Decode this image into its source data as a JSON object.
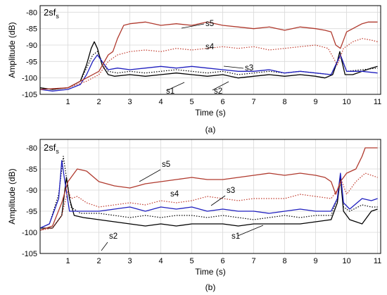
{
  "figure": {
    "panels": [
      {
        "id": "a",
        "caption": "(a)",
        "tag_main": "2sf",
        "tag_sub": "s",
        "xlabel": "Time (s)",
        "ylabel": "Amplitude (dB)",
        "xticks": [
          "1",
          "2",
          "3",
          "4",
          "5",
          "6",
          "7",
          "8",
          "9",
          "10",
          "11"
        ],
        "yticks": [
          "-80",
          "-85",
          "-90",
          "-95",
          "-100",
          "-105"
        ]
      },
      {
        "id": "b",
        "caption": "(b)",
        "tag_main": "2sf",
        "tag_sub": "s",
        "xlabel": "Time (s)",
        "ylabel": "Amplitude (dB)",
        "xticks": [
          "1",
          "2",
          "3",
          "4",
          "5",
          "6",
          "7",
          "8",
          "9",
          "10",
          "11"
        ],
        "yticks": [
          "-80",
          "-85",
          "-90",
          "-95",
          "-100",
          "-105"
        ]
      }
    ]
  },
  "chart_data": [
    {
      "type": "line",
      "panel": "(a)",
      "xlabel": "Time (s)",
      "ylabel": "Amplitude (dB)",
      "xlim": [
        0.1,
        11.1
      ],
      "ylim": [
        -105,
        -78
      ],
      "grid": true,
      "series": [
        {
          "name": "s1",
          "color": "#000000",
          "style": "solid",
          "x": [
            0.1,
            0.5,
            1.0,
            1.4,
            1.6,
            1.75,
            1.85,
            1.95,
            2.1,
            2.3,
            2.5,
            3.0,
            3.5,
            4.0,
            4.5,
            5.0,
            5.5,
            6.0,
            6.5,
            7.0,
            7.5,
            8.0,
            8.5,
            9.0,
            9.3,
            9.55,
            9.7,
            9.78,
            9.85,
            9.95,
            10.2,
            10.5,
            10.8,
            11.0
          ],
          "y": [
            -103,
            -103.5,
            -103,
            -101,
            -96,
            -91,
            -89,
            -91,
            -96,
            -99,
            -99.5,
            -99,
            -99.5,
            -99,
            -98.5,
            -99,
            -99.5,
            -99,
            -100,
            -99.5,
            -99,
            -99.5,
            -99,
            -99.5,
            -100,
            -99,
            -95,
            -92,
            -95,
            -99,
            -99,
            -98,
            -97,
            -96.5
          ]
        },
        {
          "name": "s2",
          "color": "#000000",
          "style": "dotted",
          "x": [
            0.1,
            0.5,
            1.0,
            1.4,
            1.6,
            1.8,
            1.95,
            2.1,
            2.3,
            2.6,
            3.0,
            3.5,
            4.0,
            4.5,
            5.0,
            5.5,
            6.0,
            6.5,
            7.0,
            7.5,
            8.0,
            8.5,
            9.0,
            9.5,
            9.8,
            10.0,
            10.5,
            11.0
          ],
          "y": [
            -103,
            -103.5,
            -103,
            -101,
            -97,
            -93,
            -92,
            -95,
            -98,
            -98.5,
            -98,
            -98.5,
            -98,
            -97.5,
            -98,
            -98.5,
            -98,
            -99,
            -98.5,
            -98,
            -98.5,
            -98,
            -98.5,
            -99,
            -93,
            -98,
            -97.5,
            -97
          ]
        },
        {
          "name": "s3",
          "color": "#1f1fbf",
          "style": "solid",
          "x": [
            0.1,
            0.5,
            1.0,
            1.4,
            1.6,
            1.8,
            1.95,
            2.1,
            2.3,
            2.6,
            3.0,
            3.5,
            4.0,
            4.5,
            5.0,
            5.5,
            6.0,
            6.5,
            7.0,
            7.5,
            8.0,
            8.5,
            9.0,
            9.5,
            9.8,
            10.0,
            10.5,
            11.0
          ],
          "y": [
            -103.5,
            -104,
            -103.5,
            -102,
            -99,
            -95,
            -93,
            -95,
            -97.5,
            -97,
            -97.5,
            -97,
            -96.5,
            -97,
            -96.5,
            -97,
            -97.5,
            -98,
            -98,
            -97.5,
            -98.5,
            -98,
            -98.5,
            -99,
            -93,
            -98,
            -98,
            -98.5
          ]
        },
        {
          "name": "s4",
          "color": "#c0392b",
          "style": "dotted",
          "x": [
            0.1,
            1.0,
            1.6,
            2.0,
            2.3,
            2.6,
            3.0,
            3.5,
            4.0,
            4.5,
            5.0,
            5.5,
            6.0,
            6.5,
            7.0,
            7.5,
            8.0,
            8.5,
            9.0,
            9.4,
            9.7,
            9.9,
            10.2,
            10.5,
            10.8,
            11.0
          ],
          "y": [
            -103.5,
            -103,
            -101,
            -99,
            -95,
            -93,
            -92,
            -91.5,
            -92,
            -91,
            -91.5,
            -91,
            -90.5,
            -91,
            -90.5,
            -91.5,
            -91,
            -90.5,
            -90,
            -91,
            -96,
            -91,
            -89,
            -88,
            -88.5,
            -89
          ]
        },
        {
          "name": "s5",
          "color": "#b03a2e",
          "style": "solid",
          "x": [
            0.1,
            1.0,
            1.6,
            2.0,
            2.3,
            2.45,
            2.6,
            2.8,
            3.0,
            3.5,
            4.0,
            4.5,
            5.0,
            5.5,
            6.0,
            6.5,
            7.0,
            7.5,
            8.0,
            8.5,
            9.0,
            9.3,
            9.5,
            9.65,
            9.8,
            10.0,
            10.3,
            10.5,
            10.7,
            11.0
          ],
          "y": [
            -103.5,
            -103,
            -100,
            -98,
            -93,
            -92,
            -88,
            -84,
            -83.5,
            -83,
            -84,
            -83.5,
            -84,
            -83,
            -84,
            -84.5,
            -85,
            -84.5,
            -85.5,
            -84.5,
            -85,
            -85.5,
            -86,
            -90,
            -91,
            -86,
            -84.5,
            -83.5,
            -83,
            -83
          ]
        }
      ],
      "annotations": [
        "s1",
        "s2",
        "s3",
        "s4",
        "s5"
      ]
    },
    {
      "type": "line",
      "panel": "(b)",
      "xlabel": "Time (s)",
      "ylabel": "Amplitude (dB)",
      "xlim": [
        0.1,
        11.1
      ],
      "ylim": [
        -105,
        -78
      ],
      "grid": true,
      "series": [
        {
          "name": "s1",
          "color": "#000000",
          "style": "solid",
          "x": [
            0.1,
            0.5,
            0.8,
            0.95,
            1.05,
            1.2,
            1.5,
            2.0,
            2.5,
            3.0,
            3.5,
            4.0,
            4.5,
            5.0,
            5.5,
            6.0,
            6.5,
            7.0,
            7.5,
            8.0,
            8.5,
            9.0,
            9.5,
            9.7,
            9.8,
            9.9,
            10.1,
            10.5,
            10.8,
            11.0
          ],
          "y": [
            -99,
            -99,
            -96,
            -87,
            -92,
            -96,
            -96.5,
            -97,
            -97.5,
            -98,
            -98.5,
            -98,
            -98.5,
            -98,
            -98,
            -98,
            -98.5,
            -98,
            -98,
            -98,
            -98,
            -97.5,
            -97,
            -93,
            -87,
            -95,
            -97,
            -98,
            -95,
            -94.5
          ]
        },
        {
          "name": "s2",
          "color": "#000000",
          "style": "dotted",
          "x": [
            0.1,
            0.4,
            0.7,
            0.85,
            0.95,
            1.1,
            1.4,
            2.0,
            2.5,
            3.0,
            3.5,
            4.0,
            4.5,
            5.0,
            5.5,
            6.0,
            6.5,
            7.0,
            7.5,
            8.0,
            8.5,
            9.0,
            9.5,
            9.7,
            9.8,
            9.9,
            10.1,
            10.5,
            10.8,
            11.0
          ],
          "y": [
            -99,
            -98,
            -91,
            -82,
            -87,
            -94,
            -95.5,
            -95.5,
            -96,
            -96.5,
            -96,
            -96.5,
            -96,
            -96,
            -96.5,
            -96,
            -96.5,
            -97,
            -96.5,
            -96,
            -96.5,
            -96,
            -96,
            -92,
            -87,
            -94,
            -95,
            -93.5,
            -94,
            -94
          ]
        },
        {
          "name": "s3",
          "color": "#1f1fbf",
          "style": "solid",
          "x": [
            0.1,
            0.4,
            0.7,
            0.8,
            0.9,
            1.05,
            1.3,
            2.0,
            2.5,
            3.0,
            3.5,
            4.0,
            4.5,
            5.0,
            5.5,
            6.0,
            6.5,
            7.0,
            7.5,
            8.0,
            8.5,
            9.0,
            9.5,
            9.7,
            9.8,
            9.9,
            10.1,
            10.5,
            10.8,
            11.0
          ],
          "y": [
            -99,
            -98,
            -92,
            -83,
            -88,
            -95,
            -95,
            -95,
            -94.5,
            -94,
            -95,
            -94,
            -94.5,
            -94,
            -95,
            -94.5,
            -95,
            -95,
            -95.5,
            -95,
            -94.5,
            -95,
            -95,
            -92,
            -86,
            -93,
            -94.5,
            -92,
            -92.5,
            -92
          ]
        },
        {
          "name": "s4",
          "color": "#c0392b",
          "style": "dotted",
          "x": [
            0.1,
            0.5,
            0.8,
            1.0,
            1.1,
            1.3,
            1.6,
            2.0,
            2.5,
            3.0,
            3.5,
            4.0,
            4.5,
            5.0,
            5.5,
            6.0,
            6.5,
            7.0,
            7.5,
            8.0,
            8.5,
            9.0,
            9.5,
            9.7,
            9.85,
            10.0,
            10.3,
            10.6,
            10.8,
            11.0
          ],
          "y": [
            -99.5,
            -99,
            -96,
            -90,
            -92,
            -91.5,
            -93,
            -94,
            -93.5,
            -93,
            -93.5,
            -92.5,
            -93,
            -92.5,
            -91.5,
            -92,
            -92.5,
            -92,
            -92,
            -92,
            -91,
            -91.5,
            -92,
            -90,
            -88,
            -91,
            -88,
            -86,
            -86.5,
            -87
          ]
        },
        {
          "name": "s5",
          "color": "#b03a2e",
          "style": "solid",
          "x": [
            0.1,
            0.5,
            0.8,
            1.0,
            1.15,
            1.3,
            1.6,
            2.0,
            2.5,
            3.0,
            3.5,
            4.0,
            4.5,
            5.0,
            5.5,
            6.0,
            6.5,
            7.0,
            7.5,
            8.0,
            8.5,
            9.0,
            9.3,
            9.5,
            9.65,
            9.8,
            10.0,
            10.3,
            10.5,
            10.6,
            11.0
          ],
          "y": [
            -99.5,
            -98.5,
            -93,
            -88,
            -86.5,
            -85,
            -85.5,
            -88,
            -89,
            -89.5,
            -88.5,
            -88,
            -87.5,
            -87,
            -87.5,
            -87.5,
            -87,
            -86.5,
            -86,
            -86.5,
            -86,
            -86.5,
            -87,
            -88,
            -91,
            -88,
            -86,
            -85,
            -82,
            -80,
            -80
          ]
        }
      ],
      "annotations": [
        "s1",
        "s2",
        "s3",
        "s4",
        "s5"
      ]
    }
  ]
}
